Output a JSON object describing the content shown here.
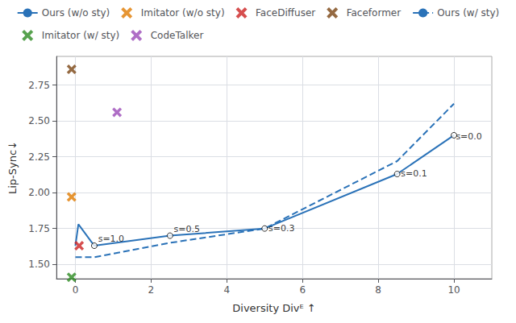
{
  "chart_data": {
    "type": "line",
    "title": "",
    "xlabel": "Diversity Divᴱ ↑",
    "ylabel": "Lip-Sync↓",
    "xlim": [
      -0.5,
      11
    ],
    "ylim": [
      1.4,
      2.95
    ],
    "xticks": [
      0,
      2,
      4,
      6,
      8,
      10
    ],
    "yticks": [
      {
        "value": 1.5,
        "label": "1.50"
      },
      {
        "value": 1.75,
        "label": "1.75"
      },
      {
        "value": 2.0,
        "label": "2.00"
      },
      {
        "value": 2.25,
        "label": "2.25"
      },
      {
        "value": 2.5,
        "label": "2.50"
      },
      {
        "value": 2.75,
        "label": "2.75"
      }
    ],
    "grid": true,
    "legend": "top",
    "series": [
      {
        "name": "Ours (w/o sty)",
        "type": "line",
        "line_style": "solid",
        "color": "#2a72b8",
        "x": [
          0.0,
          0.08,
          0.5,
          2.5,
          5.0,
          8.5,
          10.0
        ],
        "values": [
          1.63,
          1.78,
          1.63,
          1.7,
          1.75,
          2.13,
          2.4
        ],
        "markers": {
          "marker": "circle",
          "x": [
            0.5,
            2.5,
            5.0,
            8.5,
            10.0
          ],
          "values": [
            1.63,
            1.7,
            1.75,
            2.13,
            2.4
          ]
        }
      },
      {
        "name": "Imitator (w/o sty)",
        "type": "scatter",
        "marker": "x",
        "color": "#e07b00",
        "x": [
          -0.1
        ],
        "values": [
          1.97
        ]
      },
      {
        "name": "FaceDiffuser",
        "type": "scatter",
        "marker": "x",
        "color": "#cc2222",
        "x": [
          0.1
        ],
        "values": [
          1.63
        ]
      },
      {
        "name": "Faceformer",
        "type": "scatter",
        "marker": "x",
        "color": "#7b4513",
        "x": [
          -0.1
        ],
        "values": [
          2.86
        ]
      },
      {
        "name": "Ours (w/ sty)",
        "type": "line",
        "line_style": "dashed",
        "color": "#2a72b8",
        "x": [
          0.0,
          0.5,
          2.5,
          5.0,
          8.5,
          10.0
        ],
        "values": [
          1.55,
          1.55,
          1.65,
          1.75,
          2.22,
          2.62
        ]
      },
      {
        "name": "Imitator (w/ sty)",
        "type": "scatter",
        "marker": "x",
        "color": "#2d8b22",
        "x": [
          -0.1
        ],
        "values": [
          1.41
        ]
      },
      {
        "name": "CodeTalker",
        "type": "scatter",
        "marker": "x",
        "color": "#9b4ab8",
        "x": [
          1.1
        ],
        "values": [
          2.56
        ]
      }
    ],
    "annotations": [
      {
        "text": "s=1.0",
        "x": 0.6,
        "y": 1.645
      },
      {
        "text": "s=0.5",
        "x": 2.6,
        "y": 1.715
      },
      {
        "text": "s=0.3",
        "x": 5.1,
        "y": 1.72
      },
      {
        "text": "s=0.1",
        "x": 8.6,
        "y": 2.1
      },
      {
        "text": "s=0.0",
        "x": 10.05,
        "y": 2.36
      }
    ]
  }
}
